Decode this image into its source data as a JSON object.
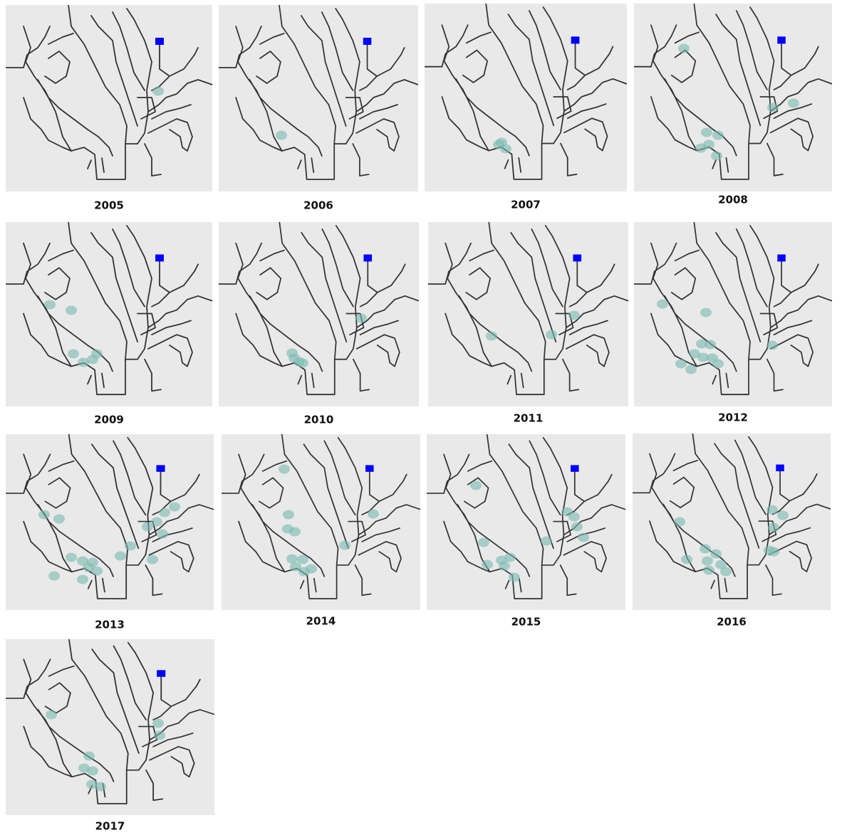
{
  "years": [
    "2005",
    "2006",
    "2007",
    "2008",
    "2009",
    "2010",
    "2011",
    "2012",
    "2013",
    "2014",
    "2015",
    "2016",
    "2017"
  ]
}
